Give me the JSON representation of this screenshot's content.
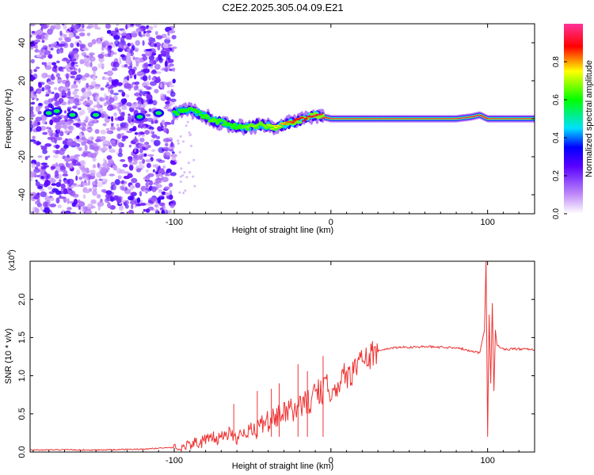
{
  "title": "C2E2.2025.305.04.09.E21",
  "chart_data": [
    {
      "type": "heatmap",
      "xlabel": "Height of straight line (km)",
      "ylabel": "Frequency (Hz)",
      "xlim": [
        -192,
        130
      ],
      "ylim": [
        -50,
        50
      ],
      "xticks": [
        -100,
        0,
        100
      ],
      "xtick_labels": [
        "-100",
        "0",
        "100"
      ],
      "yticks": [
        -40,
        -20,
        0,
        20,
        40
      ],
      "ytick_labels": [
        "-40",
        "-20",
        "0",
        "20",
        "40"
      ],
      "colorbar": {
        "label": "Normalized spectral amplitude",
        "range": [
          0,
          1
        ],
        "ticks": [
          0.0,
          0.2,
          0.4,
          0.6,
          0.8
        ],
        "tick_labels": [
          "0.0",
          "0.2",
          "0.4",
          "0.6",
          "0.8"
        ],
        "colors": [
          "#e8ccf8",
          "#9a33ff",
          "#0000ff",
          "#00ddff",
          "#00ff00",
          "#ffff00",
          "#ff0000",
          "#ff3399"
        ]
      },
      "ridge": {
        "x": [
          -100,
          -95,
          -90,
          -85,
          -80,
          -75,
          -70,
          -65,
          -60,
          -55,
          -50,
          -45,
          -40,
          -35,
          -30,
          -25,
          -20,
          -15,
          -10,
          -5,
          0,
          10,
          20,
          40,
          60,
          80,
          90,
          95,
          100,
          110,
          120,
          130
        ],
        "freq": [
          3,
          4,
          5,
          3,
          1,
          -1,
          -2,
          -3,
          -4,
          -5,
          -4,
          -3,
          -4,
          -5,
          -3,
          -2,
          -1,
          1,
          2,
          1,
          0,
          0,
          0,
          0,
          0,
          0,
          1,
          2,
          0,
          0,
          0,
          0
        ],
        "amplitude": [
          0.45,
          0.5,
          0.55,
          0.6,
          0.6,
          0.65,
          0.6,
          0.55,
          0.6,
          0.65,
          0.7,
          0.65,
          0.7,
          0.75,
          0.8,
          0.85,
          0.9,
          0.9,
          0.92,
          0.94,
          0.95,
          0.95,
          0.95,
          0.95,
          0.95,
          0.95,
          0.95,
          0.95,
          0.95,
          0.95,
          0.95,
          0.95
        ]
      }
    },
    {
      "type": "line",
      "xlabel": "Height of straight line (km)",
      "ylabel": "SNR (10 * v/v)",
      "y_multiplier": "(x10",
      "y_multiplier_exp": "4",
      "y_multiplier_close": ")",
      "xlim": [
        -192,
        130
      ],
      "ylim": [
        0,
        2.5
      ],
      "xticks": [
        -100,
        0,
        100
      ],
      "xtick_labels": [
        "-100",
        "0",
        "100"
      ],
      "yticks": [
        0.0,
        0.5,
        1.0,
        1.5,
        2.0
      ],
      "ytick_labels": [
        "0.0",
        "0.5",
        "1.0",
        "1.5",
        "2.0"
      ],
      "color": "#ee3333",
      "series": [
        {
          "name": "SNR",
          "x": [
            -192,
            -150,
            -120,
            -105,
            -100,
            -90,
            -80,
            -70,
            -65,
            -60,
            -55,
            -50,
            -45,
            -40,
            -35,
            -30,
            -25,
            -20,
            -15,
            -10,
            -5,
            0,
            10,
            20,
            30,
            40,
            60,
            80,
            95,
            98,
            99,
            100,
            101,
            102,
            103,
            104,
            105,
            106,
            110,
            120,
            130
          ],
          "y": [
            0.02,
            0.02,
            0.03,
            0.05,
            0.05,
            0.1,
            0.15,
            0.2,
            0.25,
            0.2,
            0.3,
            0.25,
            0.35,
            0.4,
            0.45,
            0.5,
            0.55,
            0.6,
            0.65,
            0.75,
            0.8,
            0.85,
            1.0,
            1.2,
            1.32,
            1.37,
            1.38,
            1.37,
            1.3,
            1.6,
            2.5,
            0.2,
            1.8,
            0.9,
            1.95,
            0.8,
            1.6,
            1.4,
            1.35,
            1.35,
            1.34
          ]
        }
      ],
      "spikes": [
        {
          "x": -62,
          "y": 0.63
        },
        {
          "x": -47,
          "y": 0.8
        },
        {
          "x": -38,
          "y": 0.83
        },
        {
          "x": -33,
          "y": 0.9
        },
        {
          "x": -21,
          "y": 1.15
        },
        {
          "x": -15,
          "y": 1.06
        },
        {
          "x": -5,
          "y": 1.26
        }
      ]
    }
  ]
}
